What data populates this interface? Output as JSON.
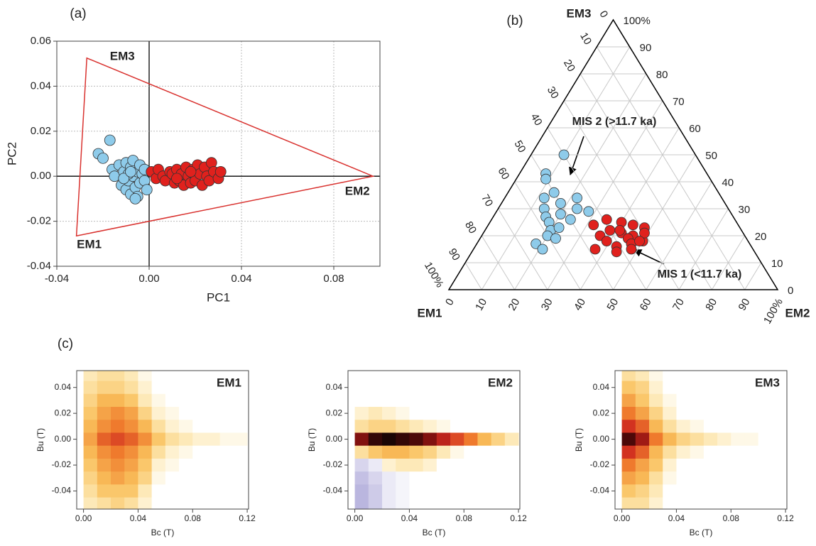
{
  "chart_data": [
    {
      "type": "scatter",
      "panel_label": "(a)",
      "xlabel": "PC1",
      "ylabel": "PC2",
      "xlim": [
        -0.04,
        0.1
      ],
      "ylim": [
        -0.04,
        0.06
      ],
      "xticks": [
        -0.04,
        {
          "value": 0,
          "label": "0.00"
        },
        0.04,
        0.08
      ],
      "yticks": [
        0.06,
        0.04,
        0.02,
        {
          "value": 0,
          "label": "0.00"
        },
        -0.02,
        -0.04
      ],
      "grid": true,
      "zero_lines": true,
      "triangle": {
        "x": [
          -0.0315,
          0.097,
          -0.027
        ],
        "y": [
          -0.0265,
          0,
          0.0525
        ],
        "labels": [
          "EM1",
          "EM2",
          "EM3"
        ],
        "color": "#d9322f"
      },
      "series": [
        {
          "color": "#8ecbea",
          "x": [
            -0.022,
            -0.02,
            -0.017,
            -0.016,
            -0.015,
            -0.013,
            -0.012,
            -0.011,
            -0.01,
            -0.01,
            -0.009,
            -0.008,
            -0.008,
            -0.007,
            -0.007,
            -0.006,
            -0.005,
            -0.005,
            -0.004,
            -0.004,
            -0.003,
            -0.002,
            -0.002,
            -0.001,
            -0.009,
            -0.006,
            -0.011,
            -0.008
          ],
          "y": [
            0.01,
            0.008,
            0.016,
            0.003,
            0.0,
            0.005,
            -0.004,
            0.002,
            -0.006,
            0.006,
            -0.002,
            0.004,
            -0.008,
            0.0,
            0.007,
            -0.005,
            0.002,
            -0.009,
            -0.003,
            0.005,
            0.001,
            -0.002,
            0.003,
            -0.006,
            0.001,
            -0.01,
            -0.001,
            0.002
          ]
        },
        {
          "color": "#e0211d",
          "x": [
            0.001,
            0.003,
            0.004,
            0.006,
            0.007,
            0.009,
            0.01,
            0.011,
            0.012,
            0.013,
            0.014,
            0.015,
            0.016,
            0.017,
            0.018,
            0.019,
            0.02,
            0.021,
            0.022,
            0.023,
            0.024,
            0.025,
            0.026,
            0.027,
            0.028,
            0.03,
            0.031,
            0.012,
            0.018
          ],
          "y": [
            0.002,
            -0.001,
            0.003,
            0.0,
            -0.002,
            0.002,
            0.001,
            -0.003,
            0.003,
            -0.002,
            0.001,
            -0.004,
            0.004,
            0.0,
            -0.003,
            0.003,
            -0.002,
            0.005,
            0.001,
            -0.004,
            0.004,
            0.0,
            -0.002,
            0.006,
            0.002,
            -0.001,
            0.002,
            -0.001,
            0.002
          ]
        }
      ]
    },
    {
      "type": "ternary",
      "panel_label": "(b)",
      "vertex_labels": [
        "EM1",
        "EM2",
        "EM3"
      ],
      "ticks": [
        0,
        10,
        20,
        30,
        40,
        50,
        60,
        70,
        80,
        90,
        {
          "value": 100,
          "label": "100%"
        }
      ],
      "annotations": [
        "MIS 2 (>11.7 ka)",
        "MIS 1 (<11.7 ka)"
      ],
      "series": [
        {
          "color": "#8ecbea",
          "em2": [
            10,
            8,
            9,
            12,
            14,
            14,
            18,
            22,
            16,
            18,
            20,
            24,
            20,
            20,
            22,
            24,
            28,
            18,
            21,
            23
          ],
          "em3": [
            50,
            43,
            41,
            34,
            30,
            36,
            32,
            34,
            27,
            25,
            28,
            30,
            22,
            20,
            23,
            26,
            29,
            17,
            15,
            19
          ]
        },
        {
          "color": "#e0211d",
          "em2": [
            32,
            35,
            38,
            40,
            42,
            44,
            46,
            48,
            50,
            36,
            39,
            41,
            43,
            45,
            47,
            49,
            48,
            49,
            37,
            44
          ],
          "em3": [
            24,
            26,
            22,
            25,
            21,
            24,
            20,
            23,
            18,
            20,
            18,
            22,
            16,
            19,
            17,
            21,
            15,
            18,
            15,
            14
          ]
        }
      ]
    },
    {
      "type": "heatmap",
      "panel_label": "(c)",
      "title": "EM1",
      "xlabel": "Bc (T)",
      "ylabel": "Bu (T)",
      "xlim": [
        -0.005,
        0.121
      ],
      "ylim": [
        -0.054,
        0.053
      ],
      "xticks": [
        {
          "value": 0,
          "label": "0.00"
        },
        0.04,
        0.08,
        0.12
      ],
      "yticks": [
        0.04,
        0.02,
        {
          "value": 0,
          "label": "0.00"
        },
        -0.02,
        -0.04
      ],
      "colors": [
        "#ffffff",
        "#fde7b0",
        "#f9bf5a",
        "#ef7a2d",
        "#cf2a1f",
        "#6e0b0b",
        "#1a0505"
      ],
      "negative_color": "#a6a0d6",
      "xbins": [
        0,
        0.01,
        0.02,
        0.03,
        0.04,
        0.05,
        0.06,
        0.07,
        0.08,
        0.09,
        0.1,
        0.11,
        0.12
      ],
      "ybins": [
        0.055,
        0.045,
        0.035,
        0.025,
        0.015,
        0.005,
        -0.005,
        -0.015,
        -0.025,
        -0.035,
        -0.045,
        -0.055
      ],
      "values": [
        [
          0.15,
          0.2,
          0.2,
          0.15,
          0.05,
          0,
          0,
          0,
          0,
          0,
          0,
          0
        ],
        [
          0.2,
          0.25,
          0.25,
          0.2,
          0.1,
          0,
          0,
          0,
          0,
          0,
          0,
          0
        ],
        [
          0.25,
          0.35,
          0.35,
          0.3,
          0.15,
          0.05,
          0,
          0,
          0,
          0,
          0,
          0
        ],
        [
          0.3,
          0.4,
          0.45,
          0.4,
          0.25,
          0.1,
          0.05,
          0,
          0,
          0,
          0,
          0
        ],
        [
          0.35,
          0.45,
          0.5,
          0.45,
          0.35,
          0.2,
          0.1,
          0.05,
          0,
          0,
          0,
          0
        ],
        [
          0.4,
          0.55,
          0.6,
          0.55,
          0.45,
          0.3,
          0.2,
          0.15,
          0.1,
          0.1,
          0.05,
          0.05
        ],
        [
          0.35,
          0.45,
          0.5,
          0.45,
          0.35,
          0.2,
          0.1,
          0.05,
          0,
          0,
          0,
          0
        ],
        [
          0.3,
          0.4,
          0.45,
          0.4,
          0.3,
          0.1,
          0.05,
          0,
          0,
          0,
          0,
          0
        ],
        [
          0.25,
          0.35,
          0.4,
          0.35,
          0.25,
          0.05,
          0,
          0,
          0,
          0,
          0,
          0
        ],
        [
          0.2,
          0.3,
          0.3,
          0.3,
          0.15,
          0,
          0,
          0,
          0,
          0,
          0,
          0
        ],
        [
          0.15,
          0.2,
          0.25,
          0.2,
          0.1,
          0,
          0,
          0,
          0,
          0,
          0,
          0
        ]
      ]
    },
    {
      "type": "heatmap",
      "title": "EM2",
      "xlabel": "Bc (T)",
      "ylabel": "Bu (T)",
      "xlim": [
        -0.005,
        0.121
      ],
      "ylim": [
        -0.054,
        0.053
      ],
      "xticks": [
        {
          "value": 0,
          "label": "0.00"
        },
        0.04,
        0.08,
        0.12
      ],
      "yticks": [
        0.04,
        0.02,
        {
          "value": 0,
          "label": "0.00"
        },
        -0.02,
        -0.04
      ],
      "colors": [
        "#ffffff",
        "#fde7b0",
        "#f9bf5a",
        "#ef7a2d",
        "#cf2a1f",
        "#6e0b0b",
        "#1a0505"
      ],
      "negative_color": "#a6a0d6",
      "xbins": [
        0,
        0.01,
        0.02,
        0.03,
        0.04,
        0.05,
        0.06,
        0.07,
        0.08,
        0.09,
        0.1,
        0.11,
        0.12
      ],
      "ybins": [
        0.055,
        0.045,
        0.035,
        0.025,
        0.015,
        0.005,
        -0.005,
        -0.015,
        -0.025,
        -0.035,
        -0.045,
        -0.055
      ],
      "values": [
        [
          0,
          0,
          0,
          0,
          0,
          0,
          0,
          0,
          0,
          0,
          0,
          0
        ],
        [
          0,
          0,
          0,
          0,
          0,
          0,
          0,
          0,
          0,
          0,
          0,
          0
        ],
        [
          0,
          0,
          0,
          0,
          0,
          0,
          0,
          0,
          0,
          0,
          0,
          0
        ],
        [
          0.1,
          0.15,
          0.1,
          0.05,
          0,
          0,
          0,
          0,
          0,
          0,
          0,
          0
        ],
        [
          0.2,
          0.25,
          0.25,
          0.2,
          0.15,
          0.1,
          0.05,
          0,
          0,
          0,
          0,
          0
        ],
        [
          0.8,
          0.95,
          1.0,
          0.95,
          0.9,
          0.8,
          0.7,
          0.6,
          0.5,
          0.35,
          0.25,
          0.15
        ],
        [
          0.2,
          0.3,
          0.35,
          0.35,
          0.3,
          0.25,
          0.15,
          0.05,
          0,
          0,
          0,
          0
        ],
        [
          -0.2,
          -0.1,
          0.1,
          0.15,
          0.15,
          0.1,
          0,
          0,
          0,
          0,
          0,
          0
        ],
        [
          -0.3,
          -0.2,
          -0.1,
          -0.05,
          0,
          0,
          0,
          0,
          0,
          0,
          0,
          0
        ],
        [
          -0.35,
          -0.25,
          -0.1,
          -0.05,
          0,
          0,
          0,
          0,
          0,
          0,
          0,
          0
        ],
        [
          -0.35,
          -0.25,
          -0.1,
          -0.05,
          0,
          0,
          0,
          0,
          0,
          0,
          0,
          0
        ]
      ]
    },
    {
      "type": "heatmap",
      "title": "EM3",
      "xlabel": "Bc (T)",
      "ylabel": "Bu (T)",
      "xlim": [
        -0.005,
        0.121
      ],
      "ylim": [
        -0.054,
        0.053
      ],
      "xticks": [
        {
          "value": 0,
          "label": "0.00"
        },
        0.04,
        0.08,
        0.12
      ],
      "yticks": [
        0.04,
        0.02,
        {
          "value": 0,
          "label": "0.00"
        },
        -0.02,
        -0.04
      ],
      "colors": [
        "#ffffff",
        "#fde7b0",
        "#f9bf5a",
        "#ef7a2d",
        "#cf2a1f",
        "#6e0b0b",
        "#1a0505"
      ],
      "negative_color": "#a6a0d6",
      "xbins": [
        0,
        0.01,
        0.02,
        0.03,
        0.04,
        0.05,
        0.06,
        0.07,
        0.08,
        0.09,
        0.1,
        0.11,
        0.12
      ],
      "ybins": [
        0.055,
        0.045,
        0.035,
        0.025,
        0.015,
        0.005,
        -0.005,
        -0.015,
        -0.025,
        -0.035,
        -0.045,
        -0.055
      ],
      "values": [
        [
          0.2,
          0.15,
          0.05,
          0,
          0,
          0,
          0,
          0,
          0,
          0,
          0,
          0
        ],
        [
          0.3,
          0.25,
          0.1,
          0,
          0,
          0,
          0,
          0,
          0,
          0,
          0,
          0
        ],
        [
          0.4,
          0.3,
          0.15,
          0.05,
          0,
          0,
          0,
          0,
          0,
          0,
          0,
          0
        ],
        [
          0.5,
          0.4,
          0.25,
          0.1,
          0,
          0,
          0,
          0,
          0,
          0,
          0,
          0
        ],
        [
          0.65,
          0.55,
          0.35,
          0.2,
          0.1,
          0.05,
          0,
          0,
          0,
          0,
          0,
          0
        ],
        [
          0.9,
          0.75,
          0.5,
          0.35,
          0.25,
          0.2,
          0.15,
          0.1,
          0.05,
          0.05,
          0,
          0
        ],
        [
          0.65,
          0.55,
          0.35,
          0.2,
          0.1,
          0.05,
          0,
          0,
          0,
          0,
          0,
          0
        ],
        [
          0.5,
          0.4,
          0.3,
          0.1,
          0,
          0,
          0,
          0,
          0,
          0,
          0,
          0
        ],
        [
          0.4,
          0.35,
          0.2,
          0.05,
          0,
          0,
          0,
          0,
          0,
          0,
          0,
          0
        ],
        [
          0.3,
          0.25,
          0.15,
          0,
          0,
          0,
          0,
          0,
          0,
          0,
          0,
          0
        ],
        [
          0.2,
          0.2,
          0.1,
          0,
          0,
          0,
          0,
          0,
          0,
          0,
          0,
          0
        ]
      ]
    }
  ]
}
